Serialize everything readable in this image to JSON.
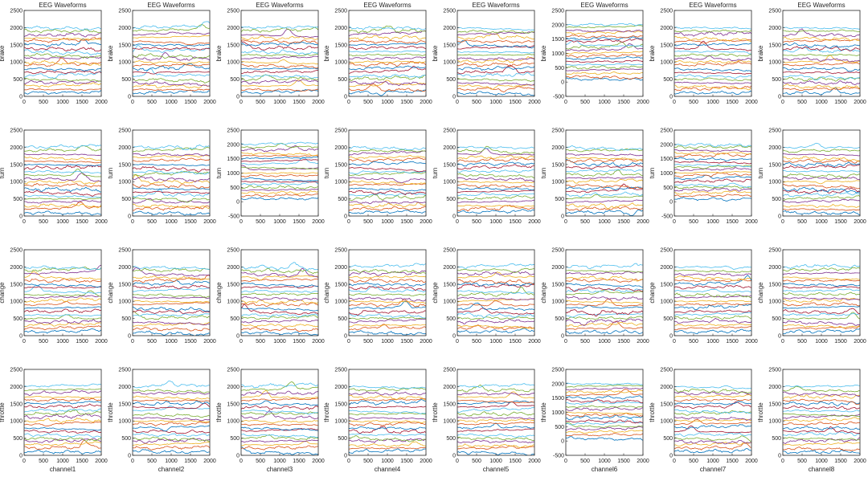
{
  "figure_title": "EEG Waveforms",
  "row_labels": [
    "brake",
    "turn",
    "change",
    "throttle"
  ],
  "column_labels": [
    "channel1",
    "channel2",
    "channel3",
    "channel4",
    "channel5",
    "channel6",
    "channel7",
    "channel8"
  ],
  "x_ticks": [
    0,
    500,
    1000,
    1500,
    2000
  ],
  "line_colors": [
    "#0072BD",
    "#D95319",
    "#EDB120",
    "#7E2F8E",
    "#77AC30",
    "#4DBEEE",
    "#A2142F"
  ],
  "chart_data": {
    "type": "line",
    "layout": "4x8 grid of subplots (rows = actions, columns = channels)",
    "title": "EEG Waveforms",
    "xlabel_per_column": [
      "channel1",
      "channel2",
      "channel3",
      "channel4",
      "channel5",
      "channel6",
      "channel7",
      "channel8"
    ],
    "ylabel_per_row": [
      "brake",
      "turn",
      "change",
      "throttle"
    ],
    "xlim": [
      0,
      2000
    ],
    "traces_per_subplot": 20,
    "trace_offset_step": 100,
    "samples_per_trace": 2001,
    "ylims": [
      [
        [
          0,
          2500
        ],
        [
          0,
          2500
        ],
        [
          0,
          2500
        ],
        [
          0,
          2500
        ],
        [
          0,
          2500
        ],
        [
          -500,
          2500
        ],
        [
          0,
          2500
        ],
        [
          0,
          2500
        ]
      ],
      [
        [
          0,
          2500
        ],
        [
          0,
          2500
        ],
        [
          -500,
          2500
        ],
        [
          0,
          2500
        ],
        [
          0,
          2500
        ],
        [
          0,
          2500
        ],
        [
          -500,
          2500
        ],
        [
          0,
          2500
        ]
      ],
      [
        [
          0,
          2500
        ],
        [
          0,
          2500
        ],
        [
          0,
          2500
        ],
        [
          0,
          2500
        ],
        [
          0,
          2500
        ],
        [
          0,
          2500
        ],
        [
          0,
          2500
        ],
        [
          0,
          2500
        ]
      ],
      [
        [
          0,
          2500
        ],
        [
          0,
          2500
        ],
        [
          0,
          2500
        ],
        [
          0,
          2500
        ],
        [
          0,
          2500
        ],
        [
          -500,
          2500
        ],
        [
          0,
          2500
        ],
        [
          0,
          2500
        ]
      ]
    ]
  }
}
